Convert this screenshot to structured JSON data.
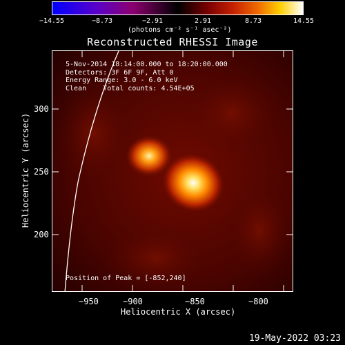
{
  "colorbar": {
    "ticks": [
      "−14.55",
      "−8.73",
      "−2.91",
      "2.91",
      "8.73",
      "14.55"
    ],
    "units": "(photons cm⁻² s⁻¹ asec⁻²)"
  },
  "title": "Reconstructed RHESSI Image",
  "info": {
    "time": "5-Nov-2014 18:14:00.000 to 18:20:00.000",
    "detectors": "Detectors: 3F 6F 9F, Att 0",
    "energy": "Energy Range: 3.0 - 6.0 keV",
    "method": "Clean    Total counts: 4.54E+05"
  },
  "peak": "Position of Peak = [-852,240]",
  "axes": {
    "xlabel": "Heliocentric X (arcsec)",
    "ylabel": "Heliocentric Y (arcsec)",
    "xticks": [
      "−950",
      "−900",
      "−850",
      "−800"
    ],
    "yticks": [
      "300",
      "250",
      "200"
    ]
  },
  "image": {
    "colormap": "red-temperature",
    "sources": [
      {
        "x": -890,
        "y": 262
      },
      {
        "x": -852,
        "y": 242
      }
    ]
  },
  "timestamp": "19-May-2022 03:23"
}
